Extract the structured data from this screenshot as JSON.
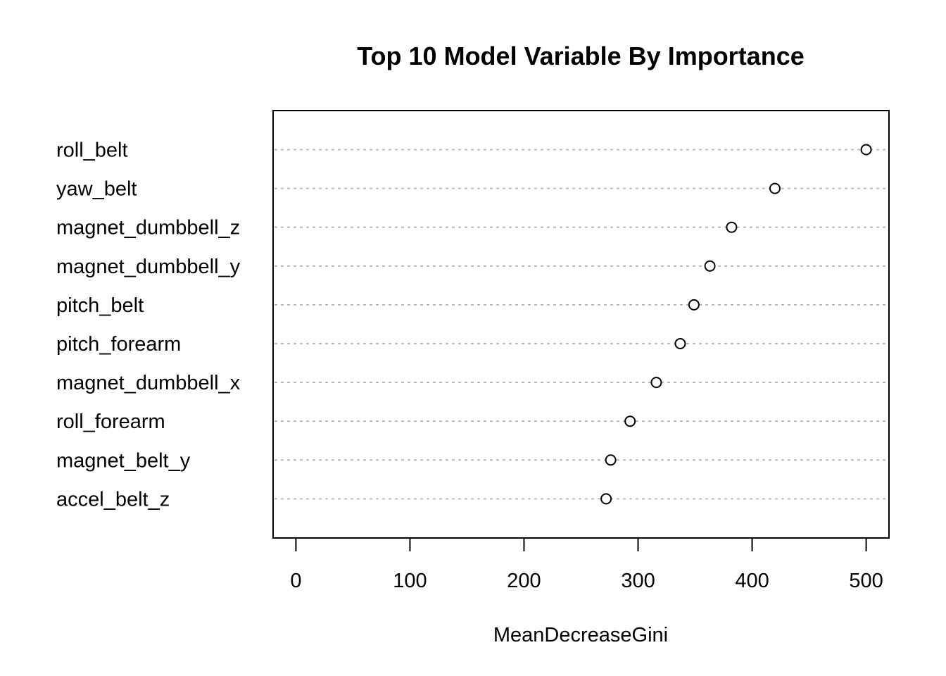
{
  "chart_data": {
    "type": "scatter",
    "title": "Top 10 Model Variable By Importance",
    "xlabel": "MeanDecreaseGini",
    "ylabel": "",
    "xlim": [
      -20,
      520
    ],
    "xticks": [
      0,
      100,
      200,
      300,
      400,
      500
    ],
    "grid": false,
    "categories": [
      "roll_belt",
      "yaw_belt",
      "magnet_dumbbell_z",
      "magnet_dumbbell_y",
      "pitch_belt",
      "pitch_forearm",
      "magnet_dumbbell_x",
      "roll_forearm",
      "magnet_belt_y",
      "accel_belt_z"
    ],
    "values": [
      500,
      420,
      382,
      363,
      349,
      337,
      316,
      293,
      276,
      272
    ]
  }
}
